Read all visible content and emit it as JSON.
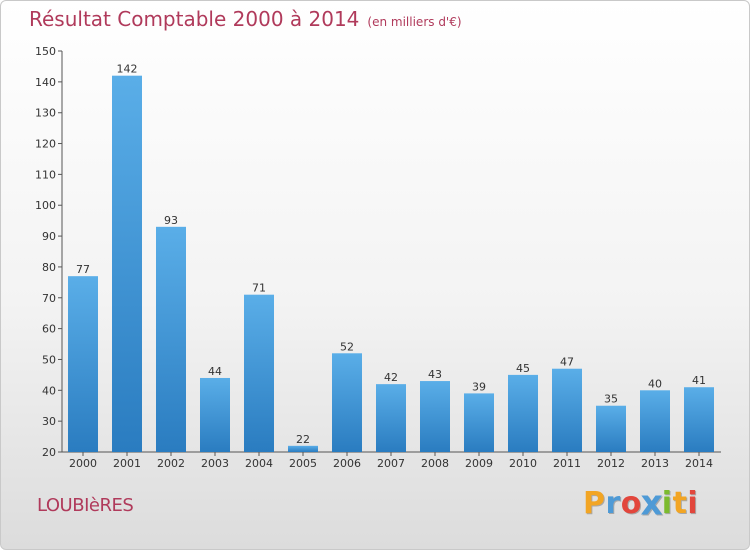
{
  "title": {
    "main": "Résultat Comptable 2000 à 2014",
    "sub": "(en milliers d'€)"
  },
  "commune": "LOUBIèRES",
  "logo": {
    "letters": [
      "P",
      "r",
      "o",
      "x",
      "i",
      "t",
      "i"
    ],
    "colors": [
      "#f2a524",
      "#4e9ad6",
      "#e2463c",
      "#4e9ad6",
      "#7cbb2e",
      "#f2a524",
      "#e2463c"
    ]
  },
  "colors": {
    "accent": "#b03a5b",
    "bar_top": "#5aaee8",
    "bar_bottom": "#2a7cc0",
    "axis": "#555555"
  },
  "chart_data": {
    "type": "bar",
    "title": "Résultat Comptable 2000 à 2014",
    "subtitle": "(en milliers d'€)",
    "xlabel": "",
    "ylabel": "",
    "categories": [
      "2000",
      "2001",
      "2002",
      "2003",
      "2004",
      "2005",
      "2006",
      "2007",
      "2008",
      "2009",
      "2010",
      "2011",
      "2012",
      "2013",
      "2014"
    ],
    "values": [
      77,
      142,
      93,
      44,
      71,
      22,
      52,
      42,
      43,
      39,
      45,
      47,
      35,
      40,
      41
    ],
    "ylim": [
      20,
      150
    ],
    "yticks": [
      20,
      30,
      40,
      50,
      60,
      70,
      80,
      90,
      100,
      110,
      120,
      130,
      140,
      150
    ],
    "grid": false,
    "data_labels": true
  }
}
